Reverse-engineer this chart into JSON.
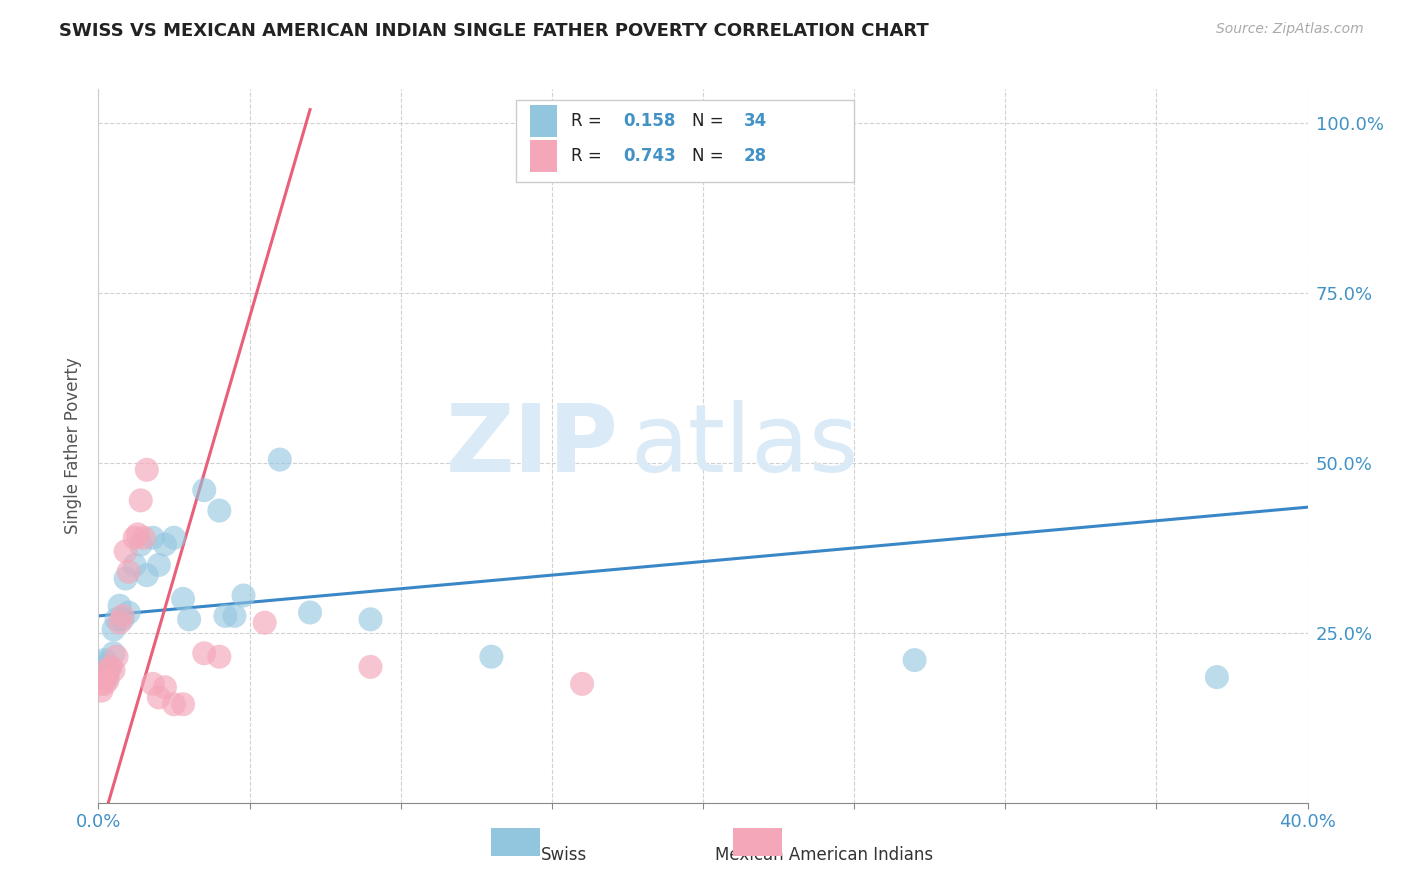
{
  "title": "SWISS VS MEXICAN AMERICAN INDIAN SINGLE FATHER POVERTY CORRELATION CHART",
  "source": "Source: ZipAtlas.com",
  "ylabel": "Single Father Poverty",
  "swiss_R": 0.158,
  "swiss_N": 34,
  "mexican_R": 0.743,
  "mexican_N": 28,
  "swiss_color": "#92c5de",
  "mexican_color": "#f4a7b9",
  "trend_swiss_color": "#3a87c8",
  "trend_mexican_color": "#e8607a",
  "watermark_color": "#daeaf7",
  "xlim": [
    0.0,
    0.4
  ],
  "ylim": [
    0.0,
    1.05
  ],
  "x_ticks": [
    0.0,
    0.05,
    0.1,
    0.15,
    0.2,
    0.25,
    0.3,
    0.35,
    0.4
  ],
  "y_ticks": [
    0.0,
    0.25,
    0.5,
    0.75,
    1.0
  ],
  "y_tick_labels": [
    "",
    "25.0%",
    "50.0%",
    "75.0%",
    "100.0%"
  ],
  "swiss_data": [
    [
      0.001,
      0.185
    ],
    [
      0.001,
      0.205
    ],
    [
      0.002,
      0.2
    ],
    [
      0.002,
      0.21
    ],
    [
      0.003,
      0.185
    ],
    [
      0.003,
      0.195
    ],
    [
      0.004,
      0.2
    ],
    [
      0.005,
      0.22
    ],
    [
      0.005,
      0.255
    ],
    [
      0.006,
      0.27
    ],
    [
      0.007,
      0.29
    ],
    [
      0.008,
      0.27
    ],
    [
      0.009,
      0.33
    ],
    [
      0.01,
      0.28
    ],
    [
      0.012,
      0.35
    ],
    [
      0.014,
      0.38
    ],
    [
      0.016,
      0.335
    ],
    [
      0.018,
      0.39
    ],
    [
      0.02,
      0.35
    ],
    [
      0.022,
      0.38
    ],
    [
      0.025,
      0.39
    ],
    [
      0.028,
      0.3
    ],
    [
      0.03,
      0.27
    ],
    [
      0.035,
      0.46
    ],
    [
      0.04,
      0.43
    ],
    [
      0.042,
      0.275
    ],
    [
      0.045,
      0.275
    ],
    [
      0.048,
      0.305
    ],
    [
      0.06,
      0.505
    ],
    [
      0.07,
      0.28
    ],
    [
      0.09,
      0.27
    ],
    [
      0.13,
      0.215
    ],
    [
      0.27,
      0.21
    ],
    [
      0.37,
      0.185
    ]
  ],
  "mexican_data": [
    [
      0.001,
      0.165
    ],
    [
      0.001,
      0.175
    ],
    [
      0.002,
      0.175
    ],
    [
      0.002,
      0.185
    ],
    [
      0.003,
      0.18
    ],
    [
      0.003,
      0.195
    ],
    [
      0.004,
      0.2
    ],
    [
      0.005,
      0.195
    ],
    [
      0.006,
      0.215
    ],
    [
      0.007,
      0.265
    ],
    [
      0.008,
      0.275
    ],
    [
      0.009,
      0.37
    ],
    [
      0.01,
      0.34
    ],
    [
      0.012,
      0.39
    ],
    [
      0.013,
      0.395
    ],
    [
      0.014,
      0.445
    ],
    [
      0.015,
      0.39
    ],
    [
      0.016,
      0.49
    ],
    [
      0.018,
      0.175
    ],
    [
      0.02,
      0.155
    ],
    [
      0.022,
      0.17
    ],
    [
      0.025,
      0.145
    ],
    [
      0.028,
      0.145
    ],
    [
      0.035,
      0.22
    ],
    [
      0.04,
      0.215
    ],
    [
      0.055,
      0.265
    ],
    [
      0.09,
      0.2
    ],
    [
      0.16,
      0.175
    ]
  ],
  "swiss_trend": [
    0.0,
    0.4,
    0.275,
    0.435
  ],
  "mexican_trend": [
    0.0,
    0.07,
    -0.05,
    1.02
  ]
}
